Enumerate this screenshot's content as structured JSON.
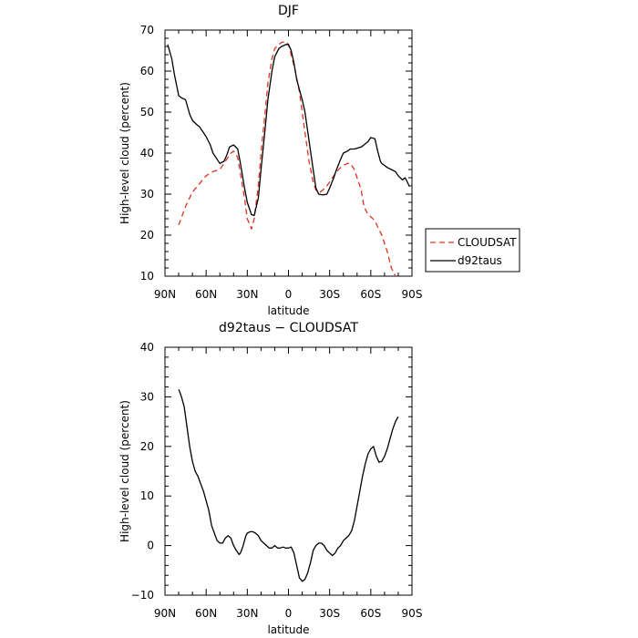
{
  "chart_data": [
    {
      "type": "line",
      "title": "DJF",
      "xlabel": "latitude",
      "ylabel": "High-level cloud (percent)",
      "xlim": [
        90,
        -90
      ],
      "ylim": [
        10,
        70
      ],
      "x_ticks": [
        90,
        60,
        30,
        0,
        -30,
        -60,
        -90
      ],
      "x_tick_labels": [
        "90N",
        "60N",
        "30N",
        "0",
        "30S",
        "60S",
        "90S"
      ],
      "y_ticks": [
        10,
        20,
        30,
        40,
        50,
        60,
        70
      ],
      "y_tick_labels": [
        "10",
        "20",
        "30",
        "40",
        "50",
        "60",
        "70"
      ],
      "grid": false,
      "legend_position": "outside-right",
      "series": [
        {
          "name": "CLOUDSAT",
          "color": "#e03020",
          "dash": "dashed",
          "x": [
            80,
            75,
            70,
            65,
            60,
            55,
            50,
            45,
            42,
            40,
            37,
            35,
            32,
            30,
            27,
            25,
            22,
            20,
            17,
            15,
            12,
            10,
            7,
            5,
            2,
            0,
            -2,
            -5,
            -8,
            -10,
            -12,
            -15,
            -18,
            -20,
            -23,
            -25,
            -28,
            -30,
            -33,
            -35,
            -38,
            -40,
            -43,
            -45,
            -48,
            -50,
            -53,
            -55,
            -58,
            -60,
            -63,
            -65,
            -68,
            -70,
            -72,
            -75,
            -78,
            -80
          ],
          "values": [
            22.5,
            27,
            30.5,
            32.5,
            34.5,
            35.5,
            36,
            38.5,
            40,
            40.5,
            39,
            35,
            29,
            24,
            21.5,
            24,
            32,
            40,
            50,
            57,
            63,
            65.5,
            66.5,
            67,
            67.2,
            66.5,
            64,
            60,
            55,
            50,
            45,
            38,
            33,
            31,
            30.5,
            31,
            32,
            33,
            34.5,
            35.5,
            36.5,
            37,
            37.5,
            37.5,
            36,
            34,
            31,
            27,
            25,
            24.5,
            23.5,
            22,
            20,
            18,
            16,
            12,
            10,
            9
          ]
        },
        {
          "name": "d92taus",
          "color": "#000000",
          "dash": "solid",
          "x": [
            88,
            85,
            83,
            80,
            78,
            75,
            72,
            70,
            67,
            65,
            62,
            60,
            57,
            55,
            52,
            50,
            47,
            45,
            43,
            40,
            37,
            35,
            32,
            30,
            27,
            25,
            22,
            20,
            17,
            15,
            12,
            10,
            7,
            5,
            3,
            2,
            0,
            -2,
            -4,
            -6,
            -8,
            -10,
            -12,
            -15,
            -18,
            -20,
            -22,
            -25,
            -28,
            -30,
            -33,
            -35,
            -38,
            -40,
            -43,
            -45,
            -48,
            -50,
            -53,
            -55,
            -58,
            -60,
            -63,
            -65,
            -67,
            -68,
            -70,
            -72,
            -75,
            -78,
            -80,
            -83,
            -85,
            -88
          ],
          "values": [
            66.5,
            63,
            59,
            54,
            53.5,
            53,
            49.5,
            48,
            47,
            46.5,
            45,
            44,
            42,
            40,
            38.5,
            37.5,
            38,
            39.5,
            41.5,
            42,
            41,
            37.5,
            31.5,
            28,
            25,
            24.8,
            29,
            36,
            46,
            53,
            60,
            63.5,
            65.5,
            66,
            66.3,
            66.5,
            66.5,
            65,
            62,
            58,
            55.5,
            53,
            50,
            43,
            36,
            31.5,
            30,
            29.8,
            30,
            31.5,
            34,
            36,
            38.5,
            40,
            40.5,
            41,
            41,
            41.2,
            41.5,
            42,
            42.8,
            43.8,
            43.5,
            40.5,
            38,
            37.5,
            37,
            36.5,
            36,
            35.5,
            34.5,
            33.5,
            34,
            32
          ]
        }
      ]
    },
    {
      "type": "line",
      "title": "d92taus − CLOUDSAT",
      "xlabel": "latitude",
      "ylabel": "High-level cloud (percent)",
      "xlim": [
        90,
        -90
      ],
      "ylim": [
        -10,
        40
      ],
      "x_ticks": [
        90,
        60,
        30,
        0,
        -30,
        -60,
        -90
      ],
      "x_tick_labels": [
        "90N",
        "60N",
        "30N",
        "0",
        "30S",
        "60S",
        "90S"
      ],
      "y_ticks": [
        -10,
        0,
        10,
        20,
        30,
        40
      ],
      "y_tick_labels": [
        "−10",
        "0",
        "10",
        "20",
        "30",
        "40"
      ],
      "grid": false,
      "series": [
        {
          "color": "#000000",
          "dash": "solid",
          "x": [
            80,
            78,
            76,
            74,
            72,
            70,
            68,
            66,
            64,
            62,
            60,
            58,
            56,
            54,
            52,
            50,
            48,
            46,
            44,
            42,
            40,
            38,
            36,
            35,
            33,
            31,
            30,
            28,
            26,
            24,
            22,
            20,
            18,
            16,
            14,
            12,
            10,
            8,
            6,
            4,
            2,
            0,
            -2,
            -4,
            -6,
            -8,
            -10,
            -12,
            -14,
            -16,
            -18,
            -20,
            -22,
            -24,
            -26,
            -28,
            -30,
            -32,
            -34,
            -36,
            -38,
            -40,
            -42,
            -44,
            -46,
            -48,
            -50,
            -52,
            -54,
            -56,
            -58,
            -60,
            -62,
            -64,
            -66,
            -68,
            -70,
            -72,
            -74,
            -76,
            -78,
            -80
          ],
          "values": [
            31.5,
            30,
            28,
            24,
            20,
            17,
            15,
            14,
            12.5,
            11,
            9,
            7,
            4,
            2.5,
            1,
            0.5,
            0.5,
            1.5,
            2,
            1.5,
            0,
            -1,
            -1.8,
            -1.5,
            0,
            2,
            2.5,
            2.8,
            2.8,
            2.5,
            2,
            1,
            0.5,
            0,
            -0.5,
            -0.5,
            0,
            -0.5,
            -0.5,
            -0.3,
            -0.5,
            -0.5,
            -0.3,
            -1.5,
            -4,
            -6.5,
            -7.2,
            -6.8,
            -5.5,
            -3.5,
            -1,
            0,
            0.5,
            0.5,
            0,
            -1,
            -1.5,
            -2,
            -1.5,
            -0.5,
            0,
            1,
            1.5,
            2,
            3,
            5,
            8,
            11,
            14,
            16.5,
            18.5,
            19.5,
            20,
            18,
            16.8,
            17,
            18,
            19.5,
            21.5,
            23.5,
            25,
            26
          ]
        }
      ]
    }
  ],
  "legend": {
    "items": [
      {
        "label": "CLOUDSAT",
        "series_index": 0
      },
      {
        "label": "d92taus",
        "series_index": 1
      }
    ]
  }
}
